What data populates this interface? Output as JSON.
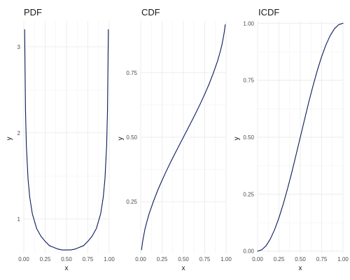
{
  "colors": {
    "line": "#0b1b5a",
    "panel_bg": "#ffffff"
  },
  "chart_data": [
    {
      "type": "line",
      "title": "PDF",
      "xlabel": "x",
      "ylabel": "y",
      "xlim": [
        0.0,
        1.0
      ],
      "ylim": [
        0.6,
        3.3
      ],
      "xticks": [
        0.0,
        0.25,
        0.5,
        0.75,
        1.0
      ],
      "xtick_labels": [
        "0.00",
        "0.25",
        "0.50",
        "0.75",
        "1.00"
      ],
      "yticks": [
        1,
        2,
        3
      ],
      "ytick_labels": [
        "1",
        "2",
        "3"
      ],
      "grid": true,
      "series": [
        {
          "x": [
            0.01,
            0.02,
            0.03,
            0.05,
            0.07,
            0.1,
            0.15,
            0.2,
            0.25,
            0.3,
            0.35,
            0.4,
            0.45,
            0.5,
            0.55,
            0.6,
            0.65,
            0.7,
            0.75,
            0.8,
            0.85,
            0.9,
            0.93,
            0.95,
            0.97,
            0.98,
            0.99
          ],
          "y": [
            3.2,
            2.26,
            1.85,
            1.46,
            1.25,
            1.06,
            0.89,
            0.8,
            0.74,
            0.69,
            0.67,
            0.65,
            0.64,
            0.64,
            0.64,
            0.65,
            0.67,
            0.69,
            0.74,
            0.8,
            0.89,
            1.06,
            1.25,
            1.46,
            1.85,
            2.26,
            3.2
          ]
        }
      ]
    },
    {
      "type": "line",
      "title": "CDF",
      "xlabel": "x",
      "ylabel": "y",
      "xlim": [
        0.0,
        1.0
      ],
      "ylim": [
        0.05,
        0.95
      ],
      "xticks": [
        0.0,
        0.25,
        0.5,
        0.75,
        1.0
      ],
      "xtick_labels": [
        "0.00",
        "0.25",
        "0.50",
        "0.75",
        "1.00"
      ],
      "yticks": [
        0.25,
        0.5,
        0.75
      ],
      "ytick_labels": [
        "0.25",
        "0.50",
        "0.75"
      ],
      "grid": true,
      "series": [
        {
          "x": [
            0.01,
            0.02,
            0.03,
            0.05,
            0.07,
            0.1,
            0.15,
            0.2,
            0.25,
            0.3,
            0.35,
            0.4,
            0.45,
            0.5,
            0.55,
            0.6,
            0.65,
            0.7,
            0.75,
            0.8,
            0.85,
            0.9,
            0.93,
            0.95,
            0.97,
            0.98,
            0.99
          ],
          "y": [
            0.064,
            0.09,
            0.11,
            0.144,
            0.17,
            0.205,
            0.252,
            0.295,
            0.333,
            0.369,
            0.403,
            0.436,
            0.468,
            0.5,
            0.532,
            0.564,
            0.597,
            0.631,
            0.667,
            0.705,
            0.748,
            0.795,
            0.83,
            0.856,
            0.89,
            0.91,
            0.936
          ]
        }
      ]
    },
    {
      "type": "line",
      "title": "ICDF",
      "xlabel": "x",
      "ylabel": "y",
      "xlim": [
        0.0,
        1.0
      ],
      "ylim": [
        -0.01,
        1.01
      ],
      "xticks": [
        0.0,
        0.25,
        0.5,
        0.75,
        1.0
      ],
      "xtick_labels": [
        "0.00",
        "0.25",
        "0.50",
        "0.75",
        "1.00"
      ],
      "yticks": [
        0.0,
        0.25,
        0.5,
        0.75,
        1.0
      ],
      "ytick_labels": [
        "0.00",
        "0.25",
        "0.50",
        "0.75",
        "1.00"
      ],
      "grid": true,
      "series": [
        {
          "x": [
            0.0,
            0.05,
            0.1,
            0.15,
            0.2,
            0.25,
            0.3,
            0.35,
            0.4,
            0.45,
            0.5,
            0.55,
            0.6,
            0.65,
            0.7,
            0.75,
            0.8,
            0.85,
            0.9,
            0.95,
            1.0
          ],
          "y": [
            0.0,
            0.006,
            0.024,
            0.054,
            0.095,
            0.146,
            0.206,
            0.273,
            0.345,
            0.422,
            0.5,
            0.578,
            0.655,
            0.727,
            0.794,
            0.854,
            0.905,
            0.946,
            0.976,
            0.994,
            1.0
          ]
        }
      ]
    }
  ]
}
